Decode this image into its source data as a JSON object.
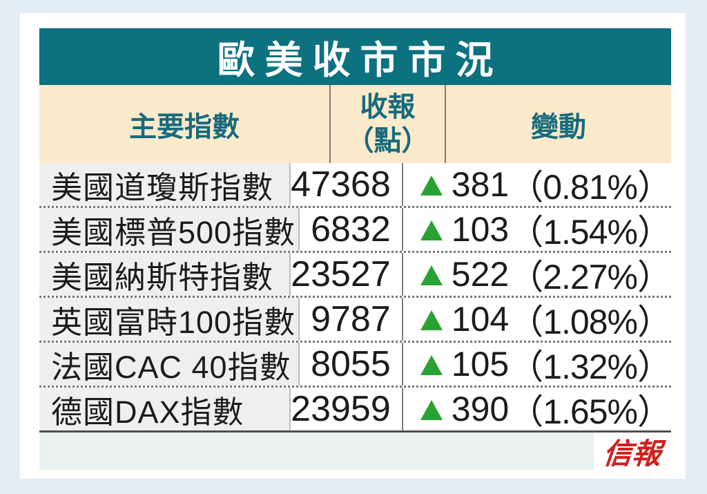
{
  "chart_data": {
    "type": "table",
    "title": "歐美收市市況",
    "columns": [
      "主要指數",
      "收報（點）",
      "變動"
    ],
    "rows": [
      {
        "index": "美國道瓊斯指數",
        "close": 47368,
        "change": 381,
        "change_pct": "0.81%",
        "direction": "up"
      },
      {
        "index": "美國標普500指數",
        "close": 6832,
        "change": 103,
        "change_pct": "1.54%",
        "direction": "up"
      },
      {
        "index": "美國納斯特指數",
        "close": 23527,
        "change": 522,
        "change_pct": "2.27%",
        "direction": "up"
      },
      {
        "index": "英國富時100指數",
        "close": 9787,
        "change": 104,
        "change_pct": "1.08%",
        "direction": "up"
      },
      {
        "index": "法國CAC 40指數",
        "close": 8055,
        "change": 105,
        "change_pct": "1.32%",
        "direction": "up"
      },
      {
        "index": "德國DAX指數",
        "close": 23959,
        "change": 390,
        "change_pct": "1.65%",
        "direction": "up"
      }
    ]
  },
  "table": {
    "title": "歐美收市市況",
    "header": {
      "col1": "主要指數",
      "col2_line1": "收報",
      "col2_line2": "（點）",
      "col3": "變動"
    },
    "rows": [
      {
        "name": "美國道瓊斯指數",
        "close": "47368",
        "change": "381",
        "pct": "（0.81%）"
      },
      {
        "name": "美國標普500指數",
        "close": "6832",
        "change": "103",
        "pct": "（1.54%）"
      },
      {
        "name": "美國納斯特指數",
        "close": "23527",
        "change": "522",
        "pct": "（2.27%）"
      },
      {
        "name": "英國富時100指數",
        "close": "9787",
        "change": "104",
        "pct": "（1.08%）"
      },
      {
        "name": "法國CAC 40指數",
        "close": "8055",
        "change": "105",
        "pct": "（1.32%）"
      },
      {
        "name": "德國DAX指數",
        "close": "23959",
        "change": "390",
        "pct": "（1.65%）"
      }
    ],
    "logo": "信報"
  },
  "colors": {
    "teal_band": "#0d7280",
    "cream_header": "#fbeacb",
    "header_text_teal": "#176b7c",
    "up_green": "#2aa133",
    "logo_red": "#d01f1f",
    "footer_mint": "#e8f2ee",
    "page_blue": "#e2edf6"
  }
}
